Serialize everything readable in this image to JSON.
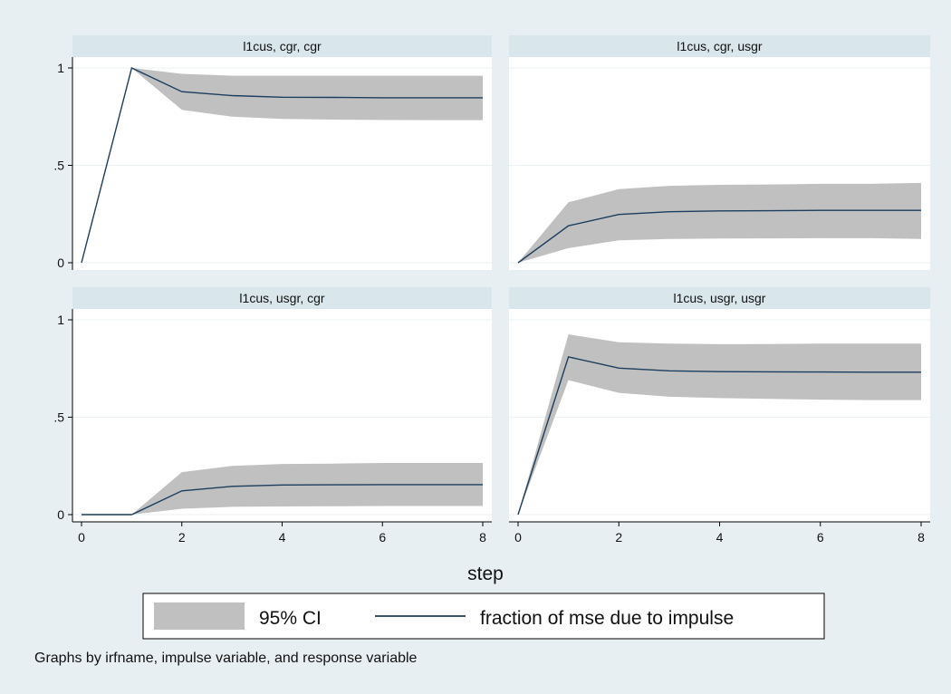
{
  "chart_data": {
    "type": "line",
    "xlabel": "step",
    "x": [
      0,
      1,
      2,
      3,
      4,
      5,
      6,
      7,
      8
    ],
    "xticks": [
      "0",
      "2",
      "4",
      "6",
      "8"
    ],
    "yticks": [
      {
        "value": 0,
        "label": "0"
      },
      {
        "value": 0.5,
        "label": ".5"
      },
      {
        "value": 1,
        "label": "1"
      }
    ],
    "ylim": [
      0,
      1
    ],
    "xlim": [
      0,
      8
    ],
    "grid": true,
    "legend": {
      "placement": "bottom",
      "entries": [
        {
          "label": "95% CI",
          "kind": "area",
          "color": "#c0c0c0"
        },
        {
          "label": "fraction of mse due to impulse",
          "kind": "line",
          "color": "#1b3d5e"
        }
      ]
    },
    "note": "Graphs by irfname, impulse variable, and response variable",
    "panels": [
      {
        "title": "l1cus, cgr, cgr",
        "values": [
          0,
          1.0,
          0.878,
          0.858,
          0.85,
          0.849,
          0.847,
          0.847,
          0.847
        ],
        "upper": [
          0,
          1.0,
          0.97,
          0.96,
          0.96,
          0.96,
          0.96,
          0.96,
          0.96
        ],
        "lower": [
          0,
          1.0,
          0.785,
          0.75,
          0.738,
          0.735,
          0.733,
          0.732,
          0.732
        ]
      },
      {
        "title": "l1cus, cgr, usgr",
        "values": [
          0,
          0.19,
          0.248,
          0.262,
          0.266,
          0.267,
          0.269,
          0.269,
          0.269
        ],
        "upper": [
          0,
          0.31,
          0.378,
          0.395,
          0.4,
          0.402,
          0.405,
          0.405,
          0.41
        ],
        "lower": [
          0,
          0.075,
          0.115,
          0.122,
          0.124,
          0.125,
          0.126,
          0.126,
          0.122
        ]
      },
      {
        "title": "l1cus, usgr, cgr",
        "values": [
          0,
          0,
          0.122,
          0.145,
          0.152,
          0.153,
          0.154,
          0.154,
          0.154
        ],
        "upper": [
          0,
          0,
          0.218,
          0.25,
          0.26,
          0.262,
          0.265,
          0.265,
          0.265
        ],
        "lower": [
          0,
          0,
          0.03,
          0.04,
          0.042,
          0.043,
          0.044,
          0.044,
          0.044
        ]
      },
      {
        "title": "l1cus, usgr, usgr",
        "values": [
          0,
          0.81,
          0.752,
          0.738,
          0.734,
          0.733,
          0.732,
          0.731,
          0.731
        ],
        "upper": [
          0,
          0.925,
          0.885,
          0.878,
          0.875,
          0.876,
          0.878,
          0.878,
          0.878
        ],
        "lower": [
          0,
          0.69,
          0.625,
          0.605,
          0.598,
          0.594,
          0.59,
          0.588,
          0.588
        ]
      }
    ]
  }
}
